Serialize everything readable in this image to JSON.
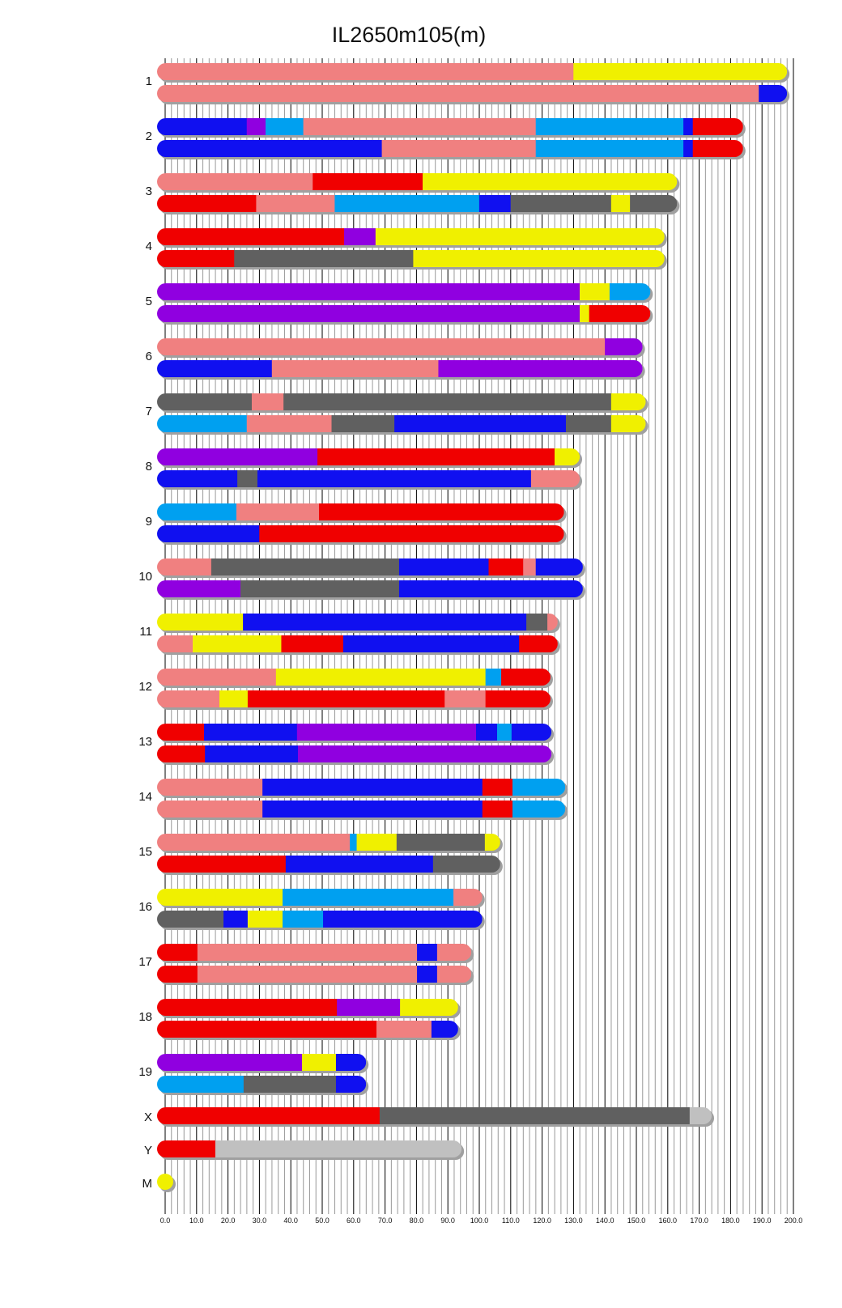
{
  "chart_data": {
    "type": "bar",
    "subtype": "chromosome-painting",
    "title": "IL2650m105(m)",
    "xlabel": "",
    "ylabel": "",
    "xlim": [
      0,
      200
    ],
    "grid": true,
    "ticks": [
      "0.0",
      "10.0",
      "20.0",
      "30.0",
      "40.0",
      "50.0",
      "60.0",
      "70.0",
      "80.0",
      "90.0",
      "100.0",
      "110.0",
      "120.0",
      "130.0",
      "140.0",
      "150.0",
      "160.0",
      "170.0",
      "180.0",
      "190.0",
      "200.0"
    ],
    "colors": {
      "salmon": "#f08080",
      "yellow": "#f0f000",
      "blue": "#1010f0",
      "purple": "#9000e0",
      "lightblue": "#00a0f0",
      "red": "#f00000",
      "gray": "#606060",
      "lightgray": "#c0c0c0"
    },
    "chromosomes": [
      {
        "name": "1",
        "haplotypes": [
          [
            [
              131,
              "salmon"
            ],
            [
              199,
              "yellow"
            ]
          ],
          [
            [
              190,
              "salmon"
            ],
            [
              199,
              "blue"
            ]
          ]
        ]
      },
      {
        "name": "2",
        "haplotypes": [
          [
            [
              27,
              "blue"
            ],
            [
              33,
              "purple"
            ],
            [
              45,
              "lightblue"
            ],
            [
              119,
              "salmon"
            ],
            [
              166,
              "lightblue"
            ],
            [
              169,
              "blue"
            ],
            [
              185,
              "red"
            ]
          ],
          [
            [
              70,
              "blue"
            ],
            [
              119,
              "salmon"
            ],
            [
              166,
              "lightblue"
            ],
            [
              169,
              "blue"
            ],
            [
              185,
              "red"
            ]
          ]
        ]
      },
      {
        "name": "3",
        "haplotypes": [
          [
            [
              48,
              "salmon"
            ],
            [
              83,
              "red"
            ],
            [
              164,
              "yellow"
            ]
          ],
          [
            [
              30,
              "red"
            ],
            [
              55,
              "salmon"
            ],
            [
              101,
              "lightblue"
            ],
            [
              111,
              "blue"
            ],
            [
              143,
              "gray"
            ],
            [
              149,
              "yellow"
            ],
            [
              164,
              "gray"
            ]
          ]
        ]
      },
      {
        "name": "4",
        "haplotypes": [
          [
            [
              58,
              "red"
            ],
            [
              68,
              "purple"
            ],
            [
              160,
              "yellow"
            ]
          ],
          [
            [
              23,
              "red"
            ],
            [
              80,
              "gray"
            ],
            [
              160,
              "yellow"
            ]
          ]
        ]
      },
      {
        "name": "5",
        "haplotypes": [
          [
            [
              133,
              "purple"
            ],
            [
              142.5,
              "yellow"
            ],
            [
              155.5,
              "lightblue"
            ]
          ],
          [
            [
              133,
              "purple"
            ],
            [
              136,
              "yellow"
            ],
            [
              155.5,
              "red"
            ]
          ]
        ]
      },
      {
        "name": "6",
        "haplotypes": [
          [
            [
              141,
              "salmon"
            ],
            [
              153,
              "purple"
            ]
          ],
          [
            [
              35,
              "blue"
            ],
            [
              88,
              "salmon"
            ],
            [
              153,
              "purple"
            ]
          ]
        ]
      },
      {
        "name": "7",
        "haplotypes": [
          [
            [
              28.6,
              "gray"
            ],
            [
              38.7,
              "salmon"
            ],
            [
              143,
              "gray"
            ],
            [
              154,
              "yellow"
            ]
          ],
          [
            [
              27,
              "lightblue"
            ],
            [
              54,
              "salmon"
            ],
            [
              74,
              "gray"
            ],
            [
              128.6,
              "blue"
            ],
            [
              143,
              "gray"
            ],
            [
              154,
              "yellow"
            ]
          ]
        ]
      },
      {
        "name": "8",
        "haplotypes": [
          [
            [
              49.5,
              "purple"
            ],
            [
              125,
              "red"
            ],
            [
              133,
              "yellow"
            ]
          ],
          [
            [
              24,
              "blue"
            ],
            [
              30.4,
              "gray"
            ],
            [
              117.5,
              "blue"
            ],
            [
              133,
              "salmon"
            ]
          ]
        ]
      },
      {
        "name": "9",
        "haplotypes": [
          [
            [
              23.7,
              "lightblue"
            ],
            [
              50,
              "salmon"
            ],
            [
              128,
              "red"
            ]
          ],
          [
            [
              31,
              "blue"
            ],
            [
              128,
              "red"
            ]
          ]
        ]
      },
      {
        "name": "10",
        "haplotypes": [
          [
            [
              15.7,
              "salmon"
            ],
            [
              75.5,
              "gray"
            ],
            [
              104,
              "blue"
            ],
            [
              115,
              "red"
            ],
            [
              119,
              "salmon"
            ],
            [
              134,
              "blue"
            ]
          ],
          [
            [
              25,
              "purple"
            ],
            [
              75.5,
              "gray"
            ],
            [
              134,
              "blue"
            ]
          ]
        ]
      },
      {
        "name": "11",
        "haplotypes": [
          [
            [
              25.8,
              "yellow"
            ],
            [
              116,
              "blue"
            ],
            [
              122.7,
              "gray"
            ],
            [
              126,
              "salmon"
            ]
          ],
          [
            [
              9.8,
              "salmon"
            ],
            [
              38,
              "yellow"
            ],
            [
              57.7,
              "red"
            ],
            [
              113.7,
              "blue"
            ],
            [
              126,
              "red"
            ]
          ]
        ]
      },
      {
        "name": "12",
        "haplotypes": [
          [
            [
              36.3,
              "salmon"
            ],
            [
              103,
              "yellow"
            ],
            [
              108,
              "lightblue"
            ],
            [
              123.7,
              "red"
            ]
          ],
          [
            [
              18.3,
              "salmon"
            ],
            [
              27.3,
              "yellow"
            ],
            [
              90,
              "red"
            ],
            [
              103,
              "salmon"
            ],
            [
              123.7,
              "red"
            ]
          ]
        ]
      },
      {
        "name": "13",
        "haplotypes": [
          [
            [
              13.4,
              "red"
            ],
            [
              43,
              "blue"
            ],
            [
              100,
              "purple"
            ],
            [
              106.7,
              "blue"
            ],
            [
              111.3,
              "lightblue"
            ],
            [
              124,
              "blue"
            ]
          ],
          [
            [
              13.7,
              "red"
            ],
            [
              43.3,
              "blue"
            ],
            [
              124,
              "purple"
            ]
          ]
        ]
      },
      {
        "name": "14",
        "haplotypes": [
          [
            [
              32,
              "salmon"
            ],
            [
              102,
              "blue"
            ],
            [
              111.6,
              "red"
            ],
            [
              128.4,
              "lightblue"
            ]
          ],
          [
            [
              32,
              "salmon"
            ],
            [
              102,
              "blue"
            ],
            [
              111.6,
              "red"
            ],
            [
              128.4,
              "lightblue"
            ]
          ]
        ]
      },
      {
        "name": "15",
        "haplotypes": [
          [
            [
              59.8,
              "salmon"
            ],
            [
              62,
              "lightblue"
            ],
            [
              74.7,
              "yellow"
            ],
            [
              102.8,
              "gray"
            ],
            [
              107.7,
              "yellow"
            ]
          ],
          [
            [
              39.4,
              "red"
            ],
            [
              86.3,
              "blue"
            ],
            [
              107.7,
              "gray"
            ]
          ]
        ]
      },
      {
        "name": "16",
        "haplotypes": [
          [
            [
              38.4,
              "yellow"
            ],
            [
              92.8,
              "lightblue"
            ],
            [
              102,
              "salmon"
            ]
          ],
          [
            [
              19.6,
              "gray"
            ],
            [
              27.3,
              "blue"
            ],
            [
              38.4,
              "yellow"
            ],
            [
              51.3,
              "lightblue"
            ],
            [
              102,
              "blue"
            ]
          ]
        ]
      },
      {
        "name": "17",
        "haplotypes": [
          [
            [
              11.3,
              "red"
            ],
            [
              81.2,
              "salmon"
            ],
            [
              87.6,
              "blue"
            ],
            [
              98.5,
              "salmon"
            ]
          ],
          [
            [
              11.3,
              "red"
            ],
            [
              81.2,
              "salmon"
            ],
            [
              87.6,
              "blue"
            ],
            [
              98.5,
              "salmon"
            ]
          ]
        ]
      },
      {
        "name": "18",
        "haplotypes": [
          [
            [
              55.7,
              "red"
            ],
            [
              75.8,
              "purple"
            ],
            [
              94.3,
              "yellow"
            ]
          ],
          [
            [
              68.3,
              "red"
            ],
            [
              85.8,
              "salmon"
            ],
            [
              94.3,
              "blue"
            ]
          ]
        ]
      },
      {
        "name": "19",
        "haplotypes": [
          [
            [
              44.6,
              "purple"
            ],
            [
              55.4,
              "yellow"
            ],
            [
              65,
              "blue"
            ]
          ],
          [
            [
              26,
              "lightblue"
            ],
            [
              55.4,
              "gray"
            ],
            [
              65,
              "blue"
            ]
          ]
        ]
      },
      {
        "name": "X",
        "haplotypes": [
          [
            [
              69.3,
              "red"
            ],
            [
              168,
              "gray"
            ],
            [
              175,
              "lightgray"
            ]
          ]
        ]
      },
      {
        "name": "Y",
        "haplotypes": [
          [
            [
              17,
              "red"
            ],
            [
              95.4,
              "lightgray"
            ]
          ]
        ]
      },
      {
        "name": "M",
        "haplotypes": [
          [
            [
              0.1,
              "yellow"
            ]
          ]
        ]
      }
    ]
  }
}
